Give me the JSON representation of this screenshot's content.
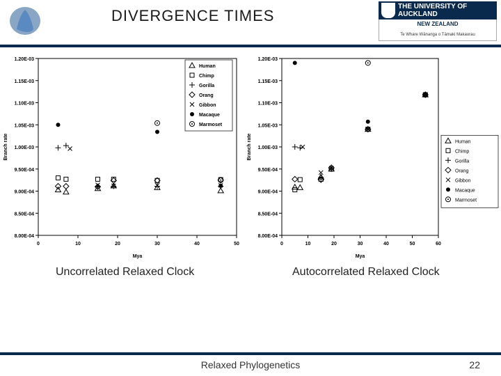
{
  "header": {
    "title": "DIVERGENCE TIMES",
    "uni_top": "THE UNIVERSITY OF AUCKLAND",
    "uni_mid": "NEW ZEALAND",
    "uni_bot": "Te Whare Wānanga o Tāmaki Makaurau"
  },
  "footer": {
    "center": "Relaxed Phylogenetics",
    "page": "22"
  },
  "caption_left": "Uncorrelated Relaxed Clock",
  "caption_right": "Autocorrelated Relaxed Clock",
  "legend_items": [
    "Human",
    "Chimp",
    "Gorilla",
    "Orang",
    "Gibbon",
    "Macaque",
    "Marmoset"
  ],
  "legend_markers": [
    "triangle",
    "square",
    "plus",
    "diamond",
    "x",
    "dot",
    "odot"
  ],
  "y_ticks": [
    "1.20E-03",
    "1.15E-03",
    "1.10E-03",
    "1.05E-03",
    "1.00E-03",
    "9.50E-04",
    "9.00E-04",
    "8.50E-04",
    "8.00E-04"
  ],
  "ylim": [
    0.0008,
    0.0012
  ],
  "chart_left": {
    "x_ticks": [
      0,
      10,
      20,
      30,
      40,
      50
    ],
    "xlabel": "Mya",
    "ylabel": "Branch rate",
    "series": {
      "Human": [
        [
          5,
          0.000903
        ],
        [
          7,
          0.000898
        ],
        [
          15,
          0.000906
        ],
        [
          19,
          0.000912
        ],
        [
          30,
          0.000908
        ],
        [
          46,
          0.000901
        ]
      ],
      "Chimp": [
        [
          5,
          0.00093
        ],
        [
          7,
          0.000927
        ],
        [
          15,
          0.000927
        ],
        [
          19,
          0.000927
        ],
        [
          30,
          0.000924
        ],
        [
          46,
          0.000926
        ]
      ],
      "Gorilla": [
        [
          5,
          0.000998
        ],
        [
          7,
          0.001003
        ],
        [
          15,
          0.00091
        ],
        [
          19,
          0.000911
        ],
        [
          30,
          0.000911
        ],
        [
          46,
          0.000911
        ]
      ],
      "Orang": [
        [
          5,
          0.000911
        ],
        [
          7,
          0.000911
        ],
        [
          15,
          0.00091
        ],
        [
          19,
          0.000924
        ],
        [
          30,
          0.000924
        ],
        [
          46,
          0.000925
        ]
      ],
      "Gibbon": [
        [
          8,
          0.000996
        ],
        [
          15,
          0.000914
        ],
        [
          19,
          0.000912
        ],
        [
          30,
          0.000913
        ],
        [
          46,
          0.000913
        ]
      ],
      "Macaque": [
        [
          5,
          0.00105
        ],
        [
          30,
          0.001034
        ],
        [
          46,
          0.000912
        ]
      ],
      "Marmoset": [
        [
          30,
          0.001054
        ],
        [
          46,
          0.000925
        ]
      ]
    }
  },
  "chart_right": {
    "x_ticks": [
      0,
      10,
      20,
      30,
      40,
      50,
      60
    ],
    "xlabel": "Mya",
    "ylabel": "Branch rate",
    "series": {
      "Human": [
        [
          5,
          0.000909
        ],
        [
          7,
          0.000908
        ],
        [
          15,
          0.000932
        ],
        [
          19,
          0.00095
        ],
        [
          33,
          0.00104
        ],
        [
          55,
          0.001118
        ]
      ],
      "Chimp": [
        [
          5,
          0.000903
        ],
        [
          7,
          0.000926
        ],
        [
          15,
          0.000927
        ],
        [
          19,
          0.00095
        ],
        [
          33,
          0.00104
        ],
        [
          55,
          0.001118
        ]
      ],
      "Gorilla": [
        [
          5,
          0.001
        ],
        [
          7,
          0.000998
        ],
        [
          15,
          0.00093
        ],
        [
          19,
          0.00095
        ],
        [
          33,
          0.00104
        ],
        [
          55,
          0.001118
        ]
      ],
      "Orang": [
        [
          5,
          0.000927
        ],
        [
          15,
          0.000926
        ],
        [
          19,
          0.000953
        ],
        [
          33,
          0.00104
        ],
        [
          55,
          0.001118
        ]
      ],
      "Gibbon": [
        [
          8,
          0.001
        ],
        [
          15,
          0.000942
        ],
        [
          19,
          0.000952
        ],
        [
          33,
          0.00104
        ],
        [
          55,
          0.001118
        ]
      ],
      "Macaque": [
        [
          5,
          0.00119
        ],
        [
          33,
          0.001057
        ],
        [
          55,
          0.001118
        ]
      ],
      "Marmoset": [
        [
          33,
          0.00119
        ],
        [
          55,
          0.001118
        ]
      ]
    }
  },
  "style": {
    "axis_color": "#000000",
    "marker_line": "#000000",
    "species_fill": {
      "Macaque": "#000000"
    },
    "tick_fontsize": 7,
    "legend_fontsize": 7,
    "axis_label_fontsize": 7,
    "plot_bg": "#ffffff",
    "header_rule": "#0a2a4d"
  }
}
